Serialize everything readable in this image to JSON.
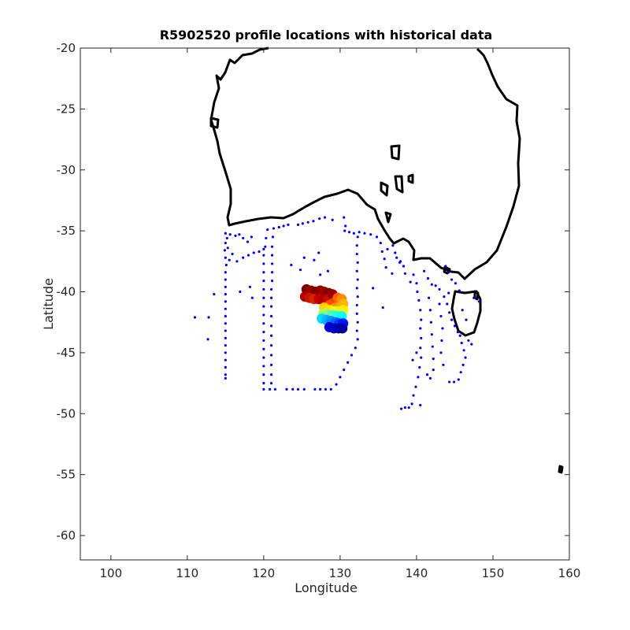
{
  "chart_data": {
    "type": "scatter",
    "title": "R5902520 profile locations with historical data",
    "xlabel": "Longitude",
    "ylabel": "Latitude",
    "xlim": [
      96,
      160
    ],
    "ylim": [
      -62,
      -20
    ],
    "xticks": [
      100,
      110,
      120,
      130,
      140,
      150,
      160
    ],
    "yticks": [
      -20,
      -25,
      -30,
      -35,
      -40,
      -45,
      -50,
      -55,
      -60
    ],
    "grid": false,
    "coastline_color": "#000000",
    "historical_color": "#0000ff",
    "historical": [
      [
        115,
        -35.2
      ],
      [
        115.2,
        -35.6
      ],
      [
        115,
        -36
      ],
      [
        114.9,
        -36.6
      ],
      [
        115,
        -37.2
      ],
      [
        115.1,
        -37.8
      ],
      [
        115,
        -38.4
      ],
      [
        115,
        -39
      ],
      [
        115,
        -39.6
      ],
      [
        115,
        -40.2
      ],
      [
        115,
        -40.8
      ],
      [
        115,
        -41.4
      ],
      [
        115,
        -42
      ],
      [
        115,
        -42.6
      ],
      [
        115,
        -43.2
      ],
      [
        115,
        -43.8
      ],
      [
        115,
        -44.4
      ],
      [
        115,
        -45
      ],
      [
        115,
        -45.6
      ],
      [
        115,
        -46.2
      ],
      [
        115,
        -46.8
      ],
      [
        115,
        -47.1
      ],
      [
        115.6,
        -35.3
      ],
      [
        116.3,
        -35.4
      ],
      [
        116.8,
        -35.3
      ],
      [
        115.3,
        -36.4
      ],
      [
        115.9,
        -36.9
      ],
      [
        115.5,
        -37.4
      ],
      [
        116.5,
        -37.5
      ],
      [
        117.3,
        -37.2
      ],
      [
        118,
        -37
      ],
      [
        118.7,
        -36.8
      ],
      [
        119.4,
        -36.7
      ],
      [
        120,
        -36.5
      ],
      [
        117.3,
        -35.6
      ],
      [
        117.9,
        -35.9
      ],
      [
        118.4,
        -35.5
      ],
      [
        113.5,
        -40.2
      ],
      [
        112.8,
        -42.1
      ],
      [
        111,
        -42.1
      ],
      [
        112.7,
        -43.9
      ],
      [
        116.9,
        -40
      ],
      [
        118.2,
        -39.6
      ],
      [
        118.5,
        -40.5
      ],
      [
        120.5,
        -34.9
      ],
      [
        120.3,
        -35.6
      ],
      [
        120.2,
        -36.3
      ],
      [
        120,
        -37
      ],
      [
        120,
        -37.7
      ],
      [
        120,
        -38.4
      ],
      [
        120,
        -39.1
      ],
      [
        120,
        -39.8
      ],
      [
        120,
        -40.5
      ],
      [
        120,
        -41.2
      ],
      [
        120,
        -41.9
      ],
      [
        120,
        -42.6
      ],
      [
        120,
        -43.3
      ],
      [
        120,
        -44
      ],
      [
        120,
        -44.7
      ],
      [
        120,
        -45.4
      ],
      [
        120,
        -46.1
      ],
      [
        120,
        -46.8
      ],
      [
        120,
        -47.5
      ],
      [
        120,
        -48
      ],
      [
        120.8,
        -48
      ],
      [
        121.5,
        -48
      ],
      [
        123,
        -48
      ],
      [
        123.8,
        -48
      ],
      [
        124.5,
        -48
      ],
      [
        125.3,
        -48
      ],
      [
        126.7,
        -48
      ],
      [
        127.4,
        -48
      ],
      [
        128.1,
        -48
      ],
      [
        128.8,
        -48
      ],
      [
        121.3,
        -34.8
      ],
      [
        122,
        -34.7
      ],
      [
        122.6,
        -34.6
      ],
      [
        123.2,
        -34.5
      ],
      [
        124.5,
        -34.5
      ],
      [
        125.1,
        -34.4
      ],
      [
        125.8,
        -34.3
      ],
      [
        126.5,
        -34.2
      ],
      [
        127.3,
        -34
      ],
      [
        128,
        -33.9
      ],
      [
        129,
        -34.1
      ],
      [
        121.2,
        -35.5
      ],
      [
        121.1,
        -36.3
      ],
      [
        121.1,
        -37
      ],
      [
        121.1,
        -37.7
      ],
      [
        121.1,
        -38.4
      ],
      [
        121.1,
        -39.1
      ],
      [
        121,
        -39.8
      ],
      [
        121,
        -40.5
      ],
      [
        121,
        -41.2
      ],
      [
        121,
        -42
      ],
      [
        121,
        -42.8
      ],
      [
        121,
        -43.6
      ],
      [
        121,
        -44.4
      ],
      [
        121,
        -45.2
      ],
      [
        121,
        -46
      ],
      [
        121,
        -46.8
      ],
      [
        121,
        -47.5
      ],
      [
        129.5,
        -47.6
      ],
      [
        130,
        -47
      ],
      [
        130.5,
        -46.4
      ],
      [
        131,
        -45.8
      ],
      [
        131.5,
        -45.2
      ],
      [
        132,
        -44.6
      ],
      [
        132.3,
        -43.9
      ],
      [
        132.2,
        -43.2
      ],
      [
        132.3,
        -42.5
      ],
      [
        132.2,
        -41.8
      ],
      [
        132.2,
        -41.1
      ],
      [
        132.3,
        -40.4
      ],
      [
        132.2,
        -39.7
      ],
      [
        132.3,
        -39
      ],
      [
        132.2,
        -38.3
      ],
      [
        132.3,
        -37.6
      ],
      [
        132.2,
        -36.9
      ],
      [
        132.2,
        -36.2
      ],
      [
        132.3,
        -35.5
      ],
      [
        132.5,
        -35.1
      ],
      [
        130.5,
        -33.9
      ],
      [
        130.7,
        -34.6
      ],
      [
        130.6,
        -35
      ],
      [
        131.2,
        -35.1
      ],
      [
        131.8,
        -35.2
      ],
      [
        133.2,
        -35.2
      ],
      [
        134,
        -35.3
      ],
      [
        134.8,
        -35.5
      ],
      [
        135.3,
        -36
      ],
      [
        135.5,
        -36.7
      ],
      [
        135.8,
        -37.3
      ],
      [
        136,
        -38
      ],
      [
        136.8,
        -38.5
      ],
      [
        137.4,
        -37.2
      ],
      [
        137.8,
        -37.6
      ],
      [
        138.3,
        -37.9
      ],
      [
        136.2,
        -36.5
      ],
      [
        136.9,
        -36.2
      ],
      [
        137.2,
        -36.8
      ],
      [
        123.6,
        -37.8
      ],
      [
        125.3,
        -37.2
      ],
      [
        127.4,
        -38.6
      ],
      [
        128.4,
        -38.3
      ],
      [
        127.2,
        -36.8
      ],
      [
        126.6,
        -37.4
      ],
      [
        124.8,
        -38.2
      ],
      [
        134.3,
        -39.7
      ],
      [
        135.6,
        -41.3
      ],
      [
        137.9,
        -37.5
      ],
      [
        138.5,
        -38.5
      ],
      [
        139.2,
        -39.2
      ],
      [
        140,
        -39.3
      ],
      [
        139.6,
        -38.6
      ],
      [
        140.1,
        -40
      ],
      [
        140.3,
        -40.7
      ],
      [
        140.5,
        -41.5
      ],
      [
        140.6,
        -42.3
      ],
      [
        140.5,
        -43
      ],
      [
        140.6,
        -43.8
      ],
      [
        140.5,
        -44.6
      ],
      [
        140.6,
        -45.4
      ],
      [
        140.4,
        -46.2
      ],
      [
        140.2,
        -47
      ],
      [
        139.9,
        -47.8
      ],
      [
        139.6,
        -48.5
      ],
      [
        139.4,
        -49.2
      ],
      [
        139,
        -49.5
      ],
      [
        138.5,
        -49.5
      ],
      [
        138,
        -49.6
      ],
      [
        140.5,
        -49.3
      ],
      [
        141,
        -38.3
      ],
      [
        141.5,
        -38.9
      ],
      [
        142,
        -39.4
      ],
      [
        142.5,
        -39.5
      ],
      [
        143,
        -39.8
      ],
      [
        143.6,
        -40.4
      ],
      [
        144,
        -41
      ],
      [
        144.3,
        -41.7
      ],
      [
        144.6,
        -42.3
      ],
      [
        145,
        -42.8
      ],
      [
        145.4,
        -43.3
      ],
      [
        145.7,
        -43.6
      ],
      [
        145.9,
        -44.2
      ],
      [
        146.2,
        -44.8
      ],
      [
        146.4,
        -45.4
      ],
      [
        146.1,
        -46
      ],
      [
        145.8,
        -46.6
      ],
      [
        145.5,
        -47.2
      ],
      [
        144.9,
        -47.4
      ],
      [
        144.3,
        -47.4
      ],
      [
        141.6,
        -40.5
      ],
      [
        141.8,
        -41.5
      ],
      [
        141.9,
        -42.5
      ],
      [
        142,
        -43.5
      ],
      [
        142.1,
        -44.5
      ],
      [
        142.2,
        -45.5
      ],
      [
        142.2,
        -46.4
      ],
      [
        141.8,
        -47.1
      ],
      [
        141.4,
        -46.8
      ],
      [
        139.5,
        -45.6
      ],
      [
        140,
        -45
      ],
      [
        143,
        -41
      ],
      [
        143.2,
        -42
      ],
      [
        143.4,
        -43
      ],
      [
        143.3,
        -44
      ],
      [
        143.2,
        -45
      ],
      [
        143.5,
        -46
      ],
      [
        143.8,
        -37.9
      ],
      [
        144.2,
        -38.4
      ],
      [
        144.6,
        -39
      ],
      [
        145.1,
        -39.3
      ],
      [
        145.6,
        -39.9
      ],
      [
        144.2,
        -40.1
      ],
      [
        146.8,
        -44
      ],
      [
        147.2,
        -44.3
      ],
      [
        146,
        -41.5
      ],
      [
        146.5,
        -42.3
      ],
      [
        147.5,
        -40.5
      ],
      [
        148.2,
        -40.8
      ]
    ],
    "float_profiles": [
      {
        "lon": 125.6,
        "lat": -39.8,
        "color": "#7f0000"
      },
      {
        "lon": 126.2,
        "lat": -39.9,
        "color": "#9a0000"
      },
      {
        "lon": 126.8,
        "lat": -40.0,
        "color": "#800000"
      },
      {
        "lon": 127.4,
        "lat": -39.9,
        "color": "#8f0000"
      },
      {
        "lon": 127.9,
        "lat": -40.0,
        "color": "#a00000"
      },
      {
        "lon": 128.5,
        "lat": -40.1,
        "color": "#850000"
      },
      {
        "lon": 125.4,
        "lat": -40.4,
        "color": "#b40000"
      },
      {
        "lon": 126.0,
        "lat": -40.5,
        "color": "#c81400"
      },
      {
        "lon": 126.6,
        "lat": -40.6,
        "color": "#d22800"
      },
      {
        "lon": 127.2,
        "lat": -40.6,
        "color": "#c80000"
      },
      {
        "lon": 127.8,
        "lat": -40.7,
        "color": "#b40000"
      },
      {
        "lon": 128.4,
        "lat": -40.6,
        "color": "#c80a00"
      },
      {
        "lon": 129.0,
        "lat": -40.2,
        "color": "#a00000"
      },
      {
        "lon": 129.1,
        "lat": -40.9,
        "color": "#e63c00"
      },
      {
        "lon": 129.7,
        "lat": -40.5,
        "color": "#ff6400"
      },
      {
        "lon": 130.2,
        "lat": -40.6,
        "color": "#ff8c00"
      },
      {
        "lon": 128.6,
        "lat": -41.1,
        "color": "#ff5000"
      },
      {
        "lon": 129.4,
        "lat": -41.3,
        "color": "#ff9600"
      },
      {
        "lon": 130.1,
        "lat": -41.2,
        "color": "#ffaa00"
      },
      {
        "lon": 130.4,
        "lat": -41.0,
        "color": "#ffb400"
      },
      {
        "lon": 127.9,
        "lat": -41.3,
        "color": "#ffd200"
      },
      {
        "lon": 128.6,
        "lat": -41.5,
        "color": "#ffe600"
      },
      {
        "lon": 129.3,
        "lat": -41.6,
        "color": "#f0ff0f"
      },
      {
        "lon": 130.0,
        "lat": -41.6,
        "color": "#d2ff2d"
      },
      {
        "lon": 130.4,
        "lat": -41.5,
        "color": "#fff000"
      },
      {
        "lon": 127.8,
        "lat": -41.8,
        "color": "#a0ff5f"
      },
      {
        "lon": 128.4,
        "lat": -41.9,
        "color": "#78ff87"
      },
      {
        "lon": 129.0,
        "lat": -41.9,
        "color": "#50ffaf"
      },
      {
        "lon": 129.6,
        "lat": -42.0,
        "color": "#28ffd7"
      },
      {
        "lon": 130.2,
        "lat": -42.0,
        "color": "#00ffff"
      },
      {
        "lon": 127.6,
        "lat": -42.2,
        "color": "#00dcff"
      },
      {
        "lon": 128.2,
        "lat": -42.3,
        "color": "#00b4ff"
      },
      {
        "lon": 128.8,
        "lat": -42.4,
        "color": "#008cff"
      },
      {
        "lon": 129.4,
        "lat": -42.5,
        "color": "#0064ff"
      },
      {
        "lon": 129.9,
        "lat": -42.6,
        "color": "#003cff"
      },
      {
        "lon": 130.4,
        "lat": -42.6,
        "color": "#0014ff"
      },
      {
        "lon": 128.6,
        "lat": -42.9,
        "color": "#0000dc"
      },
      {
        "lon": 129.2,
        "lat": -43.0,
        "color": "#0000c8"
      },
      {
        "lon": 129.8,
        "lat": -43.0,
        "color": "#0000b4"
      },
      {
        "lon": 130.3,
        "lat": -43.0,
        "color": "#0000a0"
      }
    ]
  }
}
